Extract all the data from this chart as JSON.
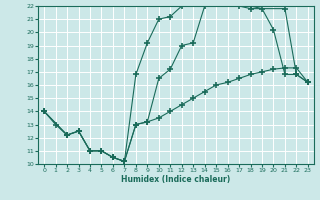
{
  "xlabel": "Humidex (Indice chaleur)",
  "xlim": [
    -0.5,
    23.5
  ],
  "ylim": [
    10,
    22
  ],
  "xticks": [
    0,
    1,
    2,
    3,
    4,
    5,
    6,
    7,
    8,
    9,
    10,
    11,
    12,
    13,
    14,
    15,
    16,
    17,
    18,
    19,
    20,
    21,
    22,
    23
  ],
  "yticks": [
    10,
    11,
    12,
    13,
    14,
    15,
    16,
    17,
    18,
    19,
    20,
    21,
    22
  ],
  "line_color": "#1a6b5a",
  "background_color": "#cce8e8",
  "grid_color": "#ffffff",
  "lines": [
    {
      "x": [
        0,
        1,
        2,
        3,
        4,
        5,
        6,
        7,
        8,
        9,
        10,
        11,
        12,
        13,
        14,
        15,
        16,
        17,
        18,
        21,
        22,
        23
      ],
      "y": [
        14,
        13,
        12.2,
        12.5,
        11,
        11,
        10.5,
        10.2,
        16.8,
        19.2,
        21,
        21.2,
        22,
        22.2,
        22.2,
        22.2,
        22.2,
        22,
        21.8,
        21.8,
        16.8,
        16.2
      ]
    },
    {
      "x": [
        0,
        2,
        3,
        4,
        5,
        6,
        7,
        8,
        9,
        10,
        11,
        12,
        13,
        14,
        15,
        16,
        17,
        18,
        19,
        20,
        21,
        22,
        23
      ],
      "y": [
        14,
        12.2,
        12.5,
        11,
        11,
        10.5,
        10.2,
        13,
        13.2,
        16.5,
        17.2,
        19,
        19.2,
        22,
        22.2,
        22.2,
        22.2,
        22,
        21.8,
        20.2,
        16.8,
        16.8,
        16.2
      ]
    },
    {
      "x": [
        0,
        2,
        3,
        4,
        5,
        6,
        7,
        8,
        9,
        10,
        11,
        12,
        13,
        14,
        15,
        16,
        17,
        18,
        19,
        20,
        21,
        22,
        23
      ],
      "y": [
        14,
        12.2,
        12.5,
        11,
        11,
        10.5,
        10.2,
        13,
        13.2,
        13.5,
        14,
        14.5,
        15,
        15.5,
        16,
        16.2,
        16.5,
        16.8,
        17.0,
        17.2,
        17.3,
        17.3,
        16.2
      ]
    }
  ]
}
